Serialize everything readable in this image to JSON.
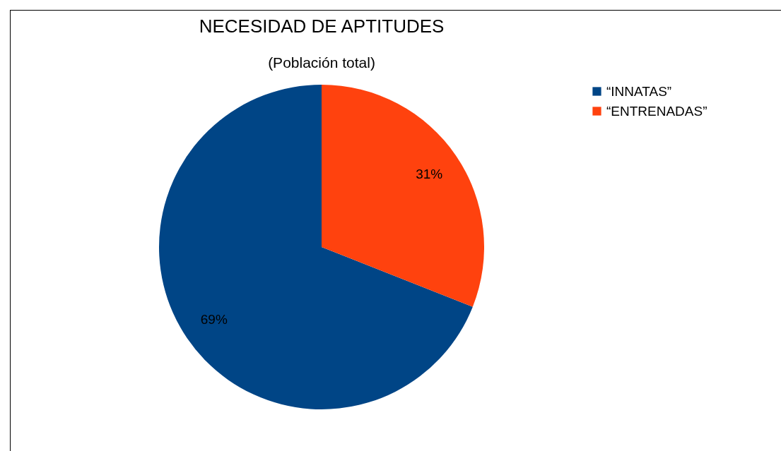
{
  "chart_data": {
    "type": "pie",
    "title": "NECESIDAD DE APTITUDES",
    "subtitle": "(Población total)",
    "categories": [
      "“INNATAS”",
      "“ENTRENADAS”"
    ],
    "values": [
      69,
      31
    ],
    "colors": [
      "#004586",
      "#ff420e"
    ],
    "value_labels": [
      "69%",
      "31%"
    ],
    "legend": "right"
  }
}
